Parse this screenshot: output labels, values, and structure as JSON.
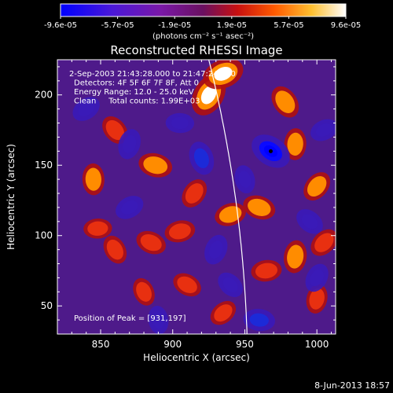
{
  "chart_data": {
    "type": "heatmap",
    "title": "Reconstructed RHESSI Image",
    "xlabel": "Heliocentric X (arcsec)",
    "ylabel": "Heliocentric Y (arcsec)",
    "xlim": [
      820,
      1013
    ],
    "ylim": [
      30,
      225
    ],
    "x_ticks": [
      "850",
      "900",
      "950",
      "1000"
    ],
    "y_ticks": [
      "50",
      "100",
      "150",
      "200"
    ],
    "colorbar": {
      "ticks": [
        "-9.6e-05",
        "-5.7e-05",
        "-1.9e-05",
        "1.9e-05",
        "5.7e-05",
        "9.6e-05"
      ],
      "range": [
        -9.6e-05,
        9.6e-05
      ],
      "unit_label": "(photons cm⁻² s⁻¹ asec⁻²)"
    },
    "annotations": [
      "2-Sep-2003 21:43:28.000 to 21:47:24.000",
      "Detectors: 4F 5F 6F 7F 8F, Att 0",
      "Energy Range: 12.0 - 25.0 keV",
      "Clean     Total counts: 1.99E+03"
    ],
    "peak_label": "Position of Peak = [931,197]",
    "blobs": [
      {
        "x": 925,
        "y": 200,
        "v": 1.0
      },
      {
        "x": 935,
        "y": 215,
        "v": 0.9
      },
      {
        "x": 888,
        "y": 150,
        "v": 0.55
      },
      {
        "x": 860,
        "y": 175,
        "v": 0.4
      },
      {
        "x": 845,
        "y": 140,
        "v": 0.45
      },
      {
        "x": 915,
        "y": 130,
        "v": 0.4
      },
      {
        "x": 940,
        "y": 115,
        "v": 0.45
      },
      {
        "x": 960,
        "y": 120,
        "v": 0.5
      },
      {
        "x": 978,
        "y": 195,
        "v": 0.55
      },
      {
        "x": 985,
        "y": 165,
        "v": 0.45
      },
      {
        "x": 1000,
        "y": 135,
        "v": 0.45
      },
      {
        "x": 905,
        "y": 103,
        "v": 0.4
      },
      {
        "x": 885,
        "y": 95,
        "v": 0.4
      },
      {
        "x": 860,
        "y": 90,
        "v": 0.35
      },
      {
        "x": 985,
        "y": 85,
        "v": 0.5
      },
      {
        "x": 1005,
        "y": 95,
        "v": 0.4
      },
      {
        "x": 965,
        "y": 75,
        "v": 0.4
      },
      {
        "x": 910,
        "y": 65,
        "v": 0.35
      },
      {
        "x": 880,
        "y": 60,
        "v": 0.3
      },
      {
        "x": 1000,
        "y": 55,
        "v": 0.35
      },
      {
        "x": 935,
        "y": 45,
        "v": 0.3
      },
      {
        "x": 848,
        "y": 105,
        "v": 0.3
      },
      {
        "x": 968,
        "y": 160,
        "v": -0.9
      },
      {
        "x": 920,
        "y": 155,
        "v": -0.55
      },
      {
        "x": 870,
        "y": 165,
        "v": -0.4
      },
      {
        "x": 840,
        "y": 190,
        "v": -0.35
      },
      {
        "x": 905,
        "y": 180,
        "v": -0.3
      },
      {
        "x": 995,
        "y": 110,
        "v": -0.35
      },
      {
        "x": 950,
        "y": 140,
        "v": -0.3
      },
      {
        "x": 930,
        "y": 90,
        "v": -0.4
      },
      {
        "x": 870,
        "y": 120,
        "v": -0.35
      },
      {
        "x": 960,
        "y": 40,
        "v": -0.45
      },
      {
        "x": 940,
        "y": 65,
        "v": -0.3
      },
      {
        "x": 890,
        "y": 40,
        "v": -0.3
      },
      {
        "x": 1000,
        "y": 70,
        "v": -0.35
      },
      {
        "x": 1005,
        "y": 175,
        "v": -0.3
      }
    ]
  },
  "footer": {
    "date": "8-Jun-2013 18:57"
  }
}
